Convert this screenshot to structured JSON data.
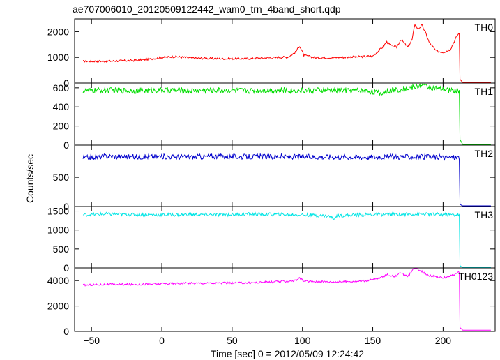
{
  "chart_data": {
    "type": "line",
    "title": "ae707006010_20120509122442_wam0_trn_4band_short.qdp",
    "xlabel": "Time [sec] 0 = 2012/05/09 12:24:42",
    "ylabel": "Counts/sec",
    "xlim": [
      -62,
      237
    ],
    "x_ticks": [
      -50,
      0,
      50,
      100,
      150,
      200
    ],
    "x_tick_labels": [
      "−50",
      "0",
      "50",
      "100",
      "150",
      "200"
    ],
    "grid": false,
    "legend": "none",
    "panels": [
      {
        "name": "TH0",
        "color": "#ff0000",
        "ylim": [
          0,
          2500
        ],
        "y_ticks": [
          0,
          1000,
          2000
        ],
        "y_tick_labels": [
          "0",
          "1000",
          "2000"
        ],
        "x": [
          -56,
          -40,
          -20,
          -10,
          0,
          10,
          20,
          40,
          60,
          80,
          90,
          95,
          98,
          101,
          110,
          130,
          150,
          157,
          160,
          163,
          167,
          170,
          175,
          178,
          180,
          182,
          185,
          188,
          190,
          195,
          200,
          205,
          210,
          211.5,
          212,
          214,
          220,
          230,
          234
        ],
        "y": [
          850,
          850,
          880,
          920,
          1000,
          1030,
          980,
          950,
          950,
          990,
          1020,
          1200,
          1450,
          1080,
          980,
          1000,
          1050,
          1400,
          1600,
          1450,
          1400,
          1700,
          1400,
          1700,
          2300,
          2100,
          2250,
          1900,
          1600,
          1250,
          1200,
          1300,
          1850,
          1950,
          150,
          20,
          20,
          20,
          20
        ]
      },
      {
        "name": "TH1",
        "color": "#00dd00",
        "ylim": [
          0,
          650
        ],
        "y_ticks": [
          0,
          200,
          400,
          600
        ],
        "y_tick_labels": [
          "0",
          "200",
          "400",
          "600"
        ],
        "x": [
          -56,
          -40,
          -20,
          0,
          20,
          40,
          60,
          80,
          100,
          120,
          140,
          150,
          155,
          160,
          170,
          180,
          185,
          190,
          200,
          210,
          211.5,
          212,
          214,
          220,
          230,
          234
        ],
        "y": [
          570,
          575,
          570,
          575,
          570,
          575,
          570,
          575,
          570,
          575,
          570,
          560,
          540,
          565,
          585,
          610,
          630,
          605,
          580,
          570,
          570,
          60,
          5,
          5,
          5,
          5
        ]
      },
      {
        "name": "TH2",
        "color": "#0000cc",
        "ylim": [
          0,
          1050
        ],
        "y_ticks": [
          0,
          500
        ],
        "y_tick_labels": [
          "0",
          "500"
        ],
        "x": [
          -56,
          -40,
          -20,
          0,
          20,
          40,
          60,
          80,
          100,
          120,
          140,
          160,
          180,
          200,
          210,
          211.5,
          212,
          214,
          220,
          230,
          234
        ],
        "y": [
          830,
          860,
          850,
          855,
          850,
          860,
          850,
          855,
          850,
          850,
          845,
          850,
          850,
          840,
          840,
          840,
          40,
          5,
          5,
          5,
          5
        ]
      },
      {
        "name": "TH3",
        "color": "#00e5e5",
        "ylim": [
          0,
          1620
        ],
        "y_ticks": [
          0,
          500,
          1000,
          1500
        ],
        "y_tick_labels": [
          "0",
          "500",
          "1000",
          "1500"
        ],
        "x": [
          -56,
          -40,
          -20,
          0,
          20,
          40,
          60,
          80,
          100,
          110,
          120,
          122,
          125,
          140,
          160,
          180,
          200,
          210,
          211.5,
          212,
          214,
          220,
          230,
          234
        ],
        "y": [
          1400,
          1420,
          1410,
          1400,
          1410,
          1400,
          1420,
          1410,
          1400,
          1390,
          1360,
          1300,
          1380,
          1400,
          1410,
          1420,
          1410,
          1400,
          1400,
          60,
          5,
          5,
          5,
          5
        ]
      },
      {
        "name": "TH0123",
        "color": "#ff00ff",
        "ylim": [
          0,
          5000
        ],
        "y_ticks": [
          0,
          2000,
          4000
        ],
        "y_tick_labels": [
          "0",
          "2000",
          "4000"
        ],
        "x": [
          -56,
          -40,
          -20,
          0,
          20,
          40,
          60,
          80,
          95,
          98,
          101,
          120,
          140,
          150,
          157,
          160,
          165,
          170,
          175,
          180,
          185,
          190,
          200,
          210,
          211.5,
          212,
          214,
          220,
          230,
          234
        ],
        "y": [
          3650,
          3700,
          3700,
          3750,
          3800,
          3800,
          3820,
          3900,
          4000,
          4200,
          3950,
          3900,
          3950,
          4050,
          4300,
          4500,
          4300,
          4600,
          4300,
          5100,
          4700,
          4400,
          4200,
          4550,
          4700,
          300,
          100,
          100,
          100,
          100
        ]
      }
    ]
  }
}
